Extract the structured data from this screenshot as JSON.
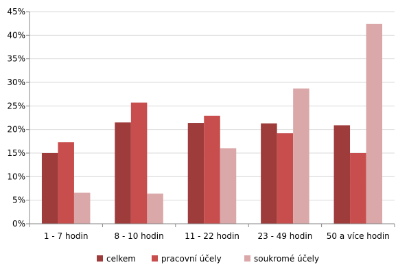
{
  "chart_data": {
    "type": "bar",
    "categories": [
      "1 - 7 hodin",
      "8 - 10 hodin",
      "11 - 22 hodin",
      "23 - 49 hodin",
      "50 a více hodin"
    ],
    "series": [
      {
        "name": "celkem",
        "color": "#9e3b3b",
        "values": [
          15.0,
          21.5,
          21.4,
          21.3,
          20.9
        ]
      },
      {
        "name": "pracovní účely",
        "color": "#c84e4e",
        "values": [
          17.3,
          25.7,
          22.9,
          19.2,
          15.0
        ]
      },
      {
        "name": "soukromé účely",
        "color": "#dba8a9",
        "values": [
          6.6,
          6.4,
          16.0,
          28.7,
          42.4
        ]
      }
    ],
    "ylim": [
      0,
      45
    ],
    "yticks": [
      "0%",
      "5%",
      "10%",
      "15%",
      "20%",
      "25%",
      "30%",
      "35%",
      "40%",
      "45%"
    ],
    "ytick_values": [
      0,
      5,
      10,
      15,
      20,
      25,
      30,
      35,
      40,
      45
    ],
    "grid": true,
    "legend_position": "bottom",
    "title": "",
    "xlabel": "",
    "ylabel": ""
  }
}
